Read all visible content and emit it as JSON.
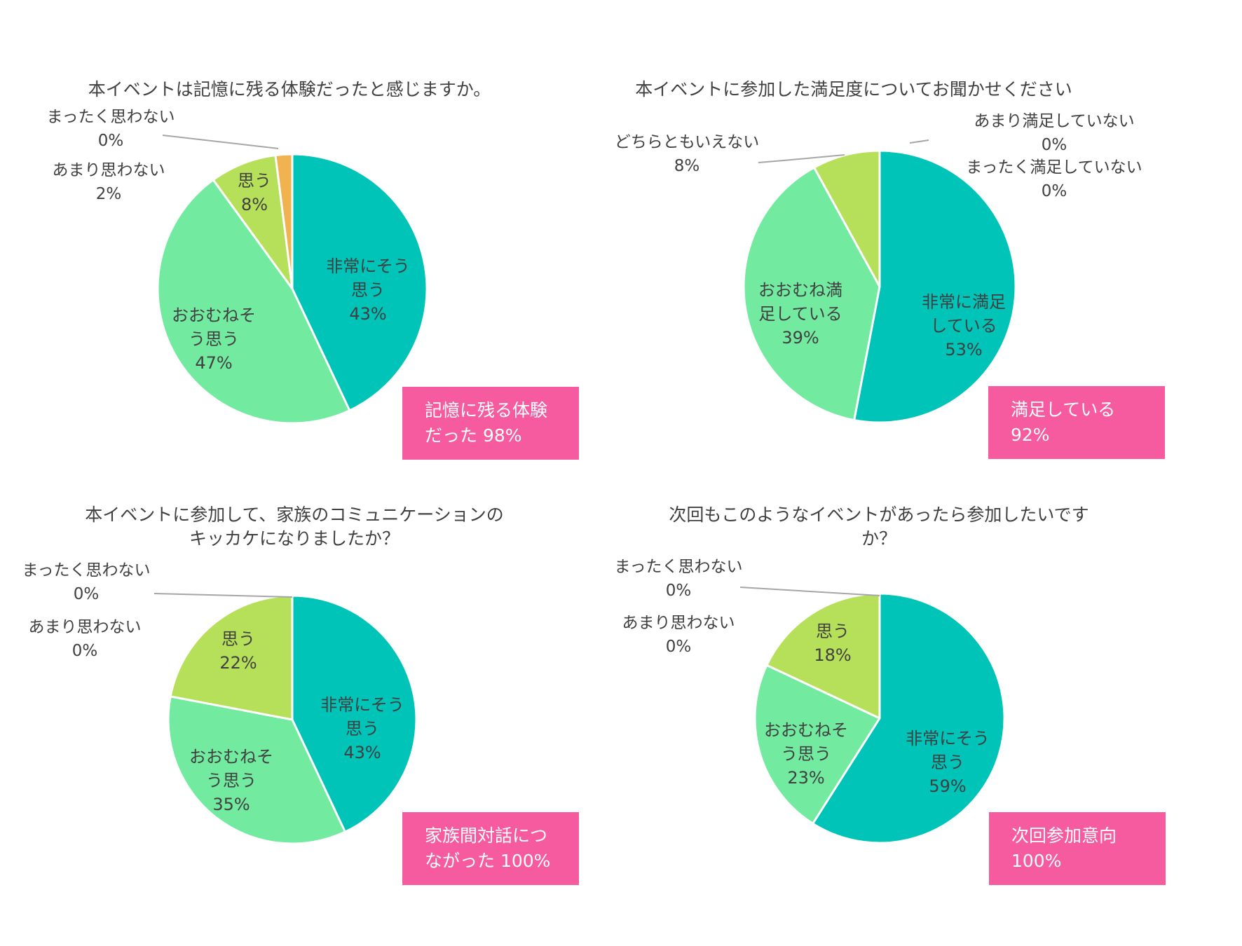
{
  "colors": {
    "very": "#00c4b8",
    "mostly": "#72eaa0",
    "yes": "#b7e05a",
    "notmuch": "#f0b350",
    "none": "#c8c8c8",
    "badge": "#f65ba0"
  },
  "chart_data": [
    {
      "type": "pie",
      "title": "本イベントは記憶に残る体験だったと感じますか。",
      "slices": [
        {
          "label": "非常にそう思う",
          "value": 43,
          "pct": "43%",
          "color": "very"
        },
        {
          "label": "おおむねそう思う",
          "value": 47,
          "pct": "47%",
          "color": "mostly"
        },
        {
          "label": "思う",
          "value": 8,
          "pct": "8%",
          "color": "yes"
        },
        {
          "label": "あまり思わない",
          "value": 2,
          "pct": "2%",
          "color": "notmuch"
        },
        {
          "label": "まったく思わない",
          "value": 0,
          "pct": "0%",
          "color": "none"
        }
      ],
      "callout": [
        "記憶に残る体験",
        "だった 98%"
      ]
    },
    {
      "type": "pie",
      "title": "本イベントに参加した満足度についてお聞かせください",
      "slices": [
        {
          "label": "非常に満足している",
          "value": 53,
          "pct": "53%",
          "color": "very"
        },
        {
          "label": "おおむね満足している",
          "value": 39,
          "pct": "39%",
          "color": "mostly"
        },
        {
          "label": "どちらともいえない",
          "value": 8,
          "pct": "8%",
          "color": "yes"
        },
        {
          "label": "あまり満足していない",
          "value": 0,
          "pct": "0%",
          "color": "notmuch"
        },
        {
          "label": "まったく満足していない",
          "value": 0,
          "pct": "0%",
          "color": "none"
        }
      ],
      "callout": [
        "満足している",
        "92%"
      ]
    },
    {
      "type": "pie",
      "title": "本イベントに参加して、家族のコミュニケーションのキッカケになりましたか？",
      "slices": [
        {
          "label": "非常にそう思う",
          "value": 43,
          "pct": "43%",
          "color": "very"
        },
        {
          "label": "おおむねそう思う",
          "value": 35,
          "pct": "35%",
          "color": "mostly"
        },
        {
          "label": "思う",
          "value": 22,
          "pct": "22%",
          "color": "yes"
        },
        {
          "label": "あまり思わない",
          "value": 0,
          "pct": "0%",
          "color": "notmuch"
        },
        {
          "label": "まったく思わない",
          "value": 0,
          "pct": "0%",
          "color": "none"
        }
      ],
      "callout": [
        "家族間対話につ",
        "ながった 100%"
      ]
    },
    {
      "type": "pie",
      "title": "次回もこのようなイベントがあったら参加したいですか？",
      "slices": [
        {
          "label": "非常にそう思う",
          "value": 59,
          "pct": "59%",
          "color": "very"
        },
        {
          "label": "おおむねそう思う",
          "value": 23,
          "pct": "23%",
          "color": "mostly"
        },
        {
          "label": "思う",
          "value": 18,
          "pct": "18%",
          "color": "yes"
        },
        {
          "label": "あまり思わない",
          "value": 0,
          "pct": "0%",
          "color": "notmuch"
        },
        {
          "label": "まったく思わない",
          "value": 0,
          "pct": "0%",
          "color": "none"
        }
      ],
      "callout": [
        "次回参加意向",
        "100%"
      ]
    }
  ]
}
